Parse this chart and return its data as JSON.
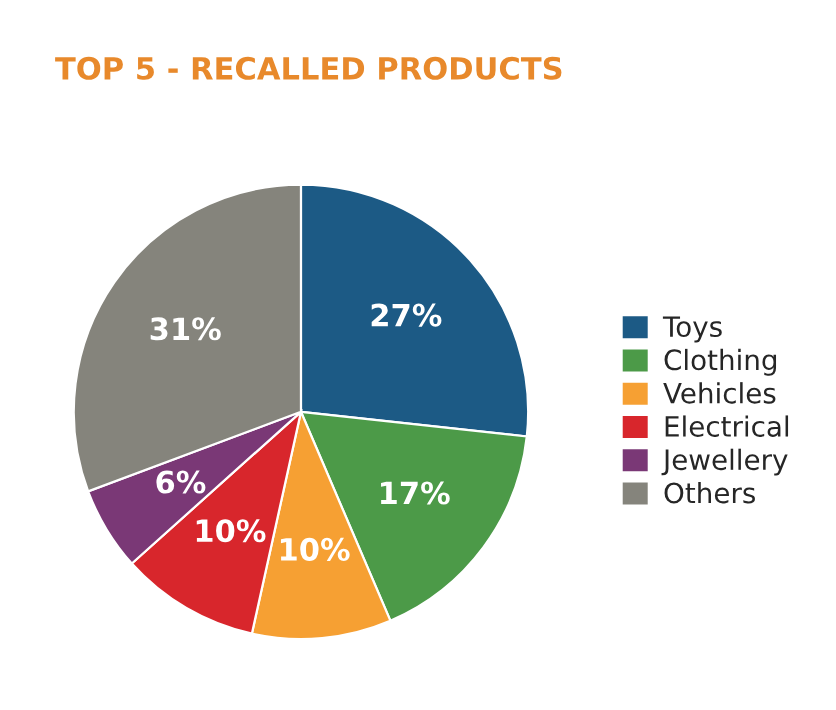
{
  "chart_data": {
    "type": "pie",
    "title": "TOP 5 - RECALLED PRODUCTS",
    "categories": [
      "Toys",
      "Clothing",
      "Vehicles",
      "Electrical",
      "Jewellery",
      "Others"
    ],
    "values": [
      27,
      17,
      10,
      10,
      6,
      31
    ],
    "colors": [
      "#1c5a85",
      "#4c9a48",
      "#f6a033",
      "#d8262c",
      "#7a3876",
      "#85847c"
    ],
    "value_labels": [
      "27%",
      "17%",
      "10%",
      "10%",
      "6%",
      "31%"
    ],
    "legend": "right"
  }
}
